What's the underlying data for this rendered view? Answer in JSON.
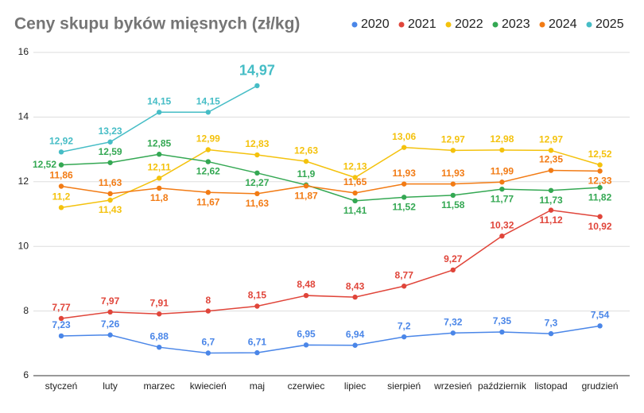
{
  "chart_data": {
    "type": "line",
    "title": "Ceny skupu byków mięsnych (zł/kg)",
    "categories": [
      "styczeń",
      "luty",
      "marzec",
      "kwiecień",
      "maj",
      "czerwiec",
      "lipiec",
      "sierpień",
      "wrzesień",
      "październik",
      "listopad",
      "grudzień"
    ],
    "ylim": [
      6,
      16
    ],
    "yticks": [
      6,
      8,
      10,
      12,
      14,
      16
    ],
    "grid": true,
    "legend": "top-right",
    "series": [
      {
        "name": "2020",
        "color": "#4a86e8",
        "values": [
          7.23,
          7.26,
          6.88,
          6.7,
          6.71,
          6.95,
          6.94,
          7.2,
          7.32,
          7.35,
          7.3,
          7.54
        ],
        "value_labels": [
          "7,23",
          "7,26",
          "6,88",
          "6,7",
          "6,71",
          "6,95",
          "6,94",
          "7,2",
          "7,32",
          "7,35",
          "7,3",
          "7,54"
        ]
      },
      {
        "name": "2021",
        "color": "#e0453a",
        "values": [
          7.77,
          7.97,
          7.91,
          8,
          8.15,
          8.48,
          8.43,
          8.77,
          9.27,
          10.32,
          11.12,
          10.92
        ],
        "value_labels": [
          "7,77",
          "7,97",
          "7,91",
          "8",
          "8,15",
          "8,48",
          "8,43",
          "8,77",
          "9,27",
          "10,32",
          "11,12",
          "10,92"
        ]
      },
      {
        "name": "2022",
        "color": "#f4c20d",
        "values": [
          11.2,
          11.43,
          12.11,
          12.99,
          12.83,
          12.63,
          12.13,
          13.06,
          12.97,
          12.98,
          12.97,
          12.52
        ],
        "value_labels": [
          "11,2",
          "11,43",
          "12,11",
          "12,99",
          "12,83",
          "12,63",
          "12,13",
          "13,06",
          "12,97",
          "12,98",
          "12,97",
          "12,52"
        ]
      },
      {
        "name": "2023",
        "color": "#34a853",
        "values": [
          12.52,
          12.59,
          12.85,
          12.62,
          12.27,
          11.9,
          11.41,
          11.52,
          11.58,
          11.77,
          11.73,
          11.82
        ],
        "value_labels": [
          "12,52",
          "12,59",
          "12,85",
          "12,62",
          "12,27",
          "11,9",
          "11,41",
          "11,52",
          "11,58",
          "11,77",
          "11,73",
          "11,82"
        ]
      },
      {
        "name": "2024",
        "color": "#f27b14",
        "values": [
          11.86,
          11.63,
          11.8,
          11.67,
          11.63,
          11.87,
          11.65,
          11.93,
          11.93,
          11.99,
          12.35,
          12.33
        ],
        "value_labels": [
          "11,86",
          "11,63",
          "11,8",
          "11,67",
          "11,63",
          "11,87",
          "11,65",
          "11,93",
          "11,93",
          "11,99",
          "12,35",
          "12,33"
        ]
      },
      {
        "name": "2025",
        "color": "#46bdc6",
        "values": [
          12.92,
          13.23,
          14.15,
          14.15,
          14.97,
          null,
          null,
          null,
          null,
          null,
          null,
          null
        ],
        "value_labels": [
          "12,92",
          "13,23",
          "14,15",
          "14,15",
          "14,97",
          null,
          null,
          null,
          null,
          null,
          null,
          null
        ]
      }
    ]
  }
}
